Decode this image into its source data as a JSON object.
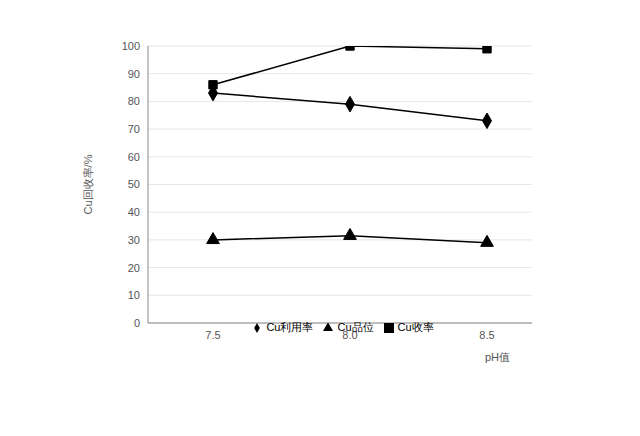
{
  "chart_data": {
    "type": "line",
    "categories": [
      "7.5",
      "8.0",
      "8.5"
    ],
    "x_label": "pH值",
    "y_label": "Cu回收率/%",
    "ylim": [
      0,
      100
    ],
    "yticks": [
      0,
      10,
      20,
      30,
      40,
      50,
      60,
      70,
      80,
      90,
      100
    ],
    "grid": true,
    "legend": "bottom",
    "series": [
      {
        "name": "Cu品位",
        "color": "#000000",
        "marker": "triangle",
        "values": [
          30,
          31.5,
          29
        ]
      },
      {
        "name": "Cu收率",
        "color": "#000000",
        "marker": "square",
        "values": [
          86,
          100,
          99
        ]
      },
      {
        "name": "Cu利用率",
        "color": "#000000",
        "marker": "diamond",
        "values": [
          83,
          79,
          73
        ]
      }
    ]
  }
}
